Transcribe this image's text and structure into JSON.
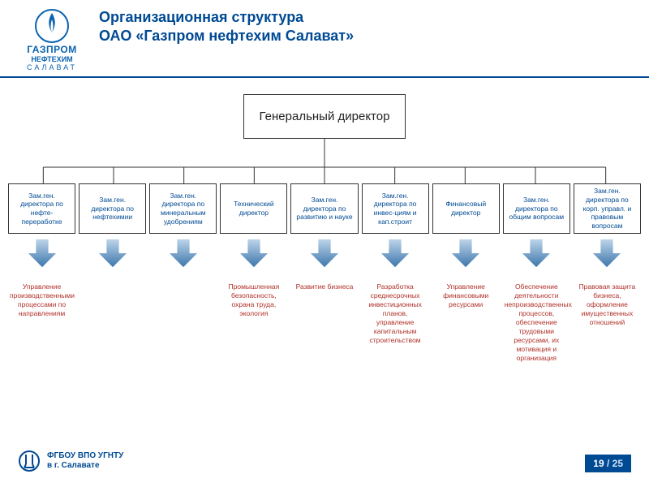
{
  "header": {
    "logo": {
      "line1": "ГАЗПРОМ",
      "line2": "НЕФТЕХИМ",
      "line3": "САЛАВАТ"
    },
    "title_line1": "Организационная структура",
    "title_line2": "ОАО «Газпром нефтехим Салават»"
  },
  "chart": {
    "type": "tree",
    "root": {
      "label": "Генеральный директор"
    },
    "box_border": "#333333",
    "connector_color": "#333333",
    "dept_text_color": "#004a93",
    "desc_text_color": "#b03028",
    "arrow_gradient": {
      "from": "#bcd4e8",
      "to": "#3d76ad"
    },
    "departments": [
      {
        "label": "Зам.ген. директора по нефте-переработке",
        "desc": "Управление производственными процессами по направлениям"
      },
      {
        "label": "Зам.ген. директора по нефтехимии",
        "desc": ""
      },
      {
        "label": "Зам.ген. директора по минеральным удобрениям",
        "desc": ""
      },
      {
        "label": "Технический директор",
        "desc": "Промышленная безопасность, охрана труда, экология"
      },
      {
        "label": "Зам.ген. директора по развитию и науке",
        "desc": "Развитие бизнеса"
      },
      {
        "label": "Зам.ген. директора по инвес-циям и кап.строит",
        "desc": "Разработка среднесрочных инвестиционных планов, управление капитальным строительством"
      },
      {
        "label": "Финансовый директор",
        "desc": "Управление финансовыми ресурсами"
      },
      {
        "label": "Зам.ген. директора по общим вопросам",
        "desc": "Обеспечение деятельности непроизводственных процессов, обеспечение трудовыми ресурсами, их мотивация и организация"
      },
      {
        "label": "Зам.ген. директора по корп. управл. и правовым вопросам",
        "desc": "Правовая защита бизнеса, оформление имущественных отношений"
      }
    ]
  },
  "footer": {
    "line1": "ФГБОУ ВПО УГНТУ",
    "line2": "в г. Салавате"
  },
  "pager": {
    "current": "19",
    "total": "25",
    "sep": " / "
  },
  "colors": {
    "brand": "#004a93",
    "accent": "#0a63b0"
  }
}
